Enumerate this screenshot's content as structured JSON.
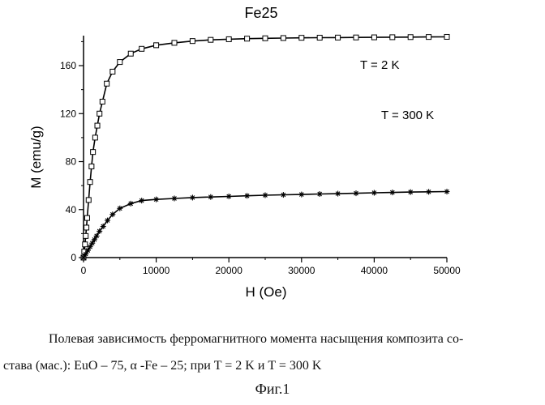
{
  "chart_data": {
    "type": "line",
    "title": "Fe25",
    "xlabel": "H (Oe)",
    "ylabel": "M (emu/g)",
    "xlim": [
      0,
      50000
    ],
    "ylim": [
      0,
      185
    ],
    "xticks": [
      0,
      10000,
      20000,
      30000,
      40000,
      50000
    ],
    "yticks": [
      0,
      40,
      80,
      120,
      160
    ],
    "grid": false,
    "legend": "none",
    "series": [
      {
        "name": "T = 2 K",
        "marker": "open-square",
        "x": [
          0,
          100,
          200,
          300,
          400,
          500,
          700,
          900,
          1100,
          1300,
          1600,
          1900,
          2200,
          2600,
          3200,
          4000,
          5000,
          6500,
          8000,
          10000,
          12500,
          15000,
          17500,
          20000,
          22500,
          25000,
          27500,
          30000,
          32500,
          35000,
          37500,
          40000,
          42500,
          45000,
          47500,
          50000
        ],
        "values": [
          0,
          5,
          11,
          18,
          25,
          33,
          48,
          63,
          76,
          88,
          100,
          110,
          120,
          130,
          145,
          155,
          163,
          170,
          174,
          177,
          179,
          180.5,
          181.5,
          182,
          182.5,
          182.8,
          183,
          183.2,
          183.3,
          183.4,
          183.5,
          183.6,
          183.7,
          183.8,
          183.9,
          184
        ]
      },
      {
        "name": "T = 300 K",
        "marker": "asterisk",
        "x": [
          0,
          300,
          600,
          900,
          1200,
          1500,
          1800,
          2200,
          2700,
          3300,
          4000,
          5000,
          6500,
          8000,
          10000,
          12500,
          15000,
          17500,
          20000,
          22500,
          25000,
          27500,
          30000,
          32500,
          35000,
          37500,
          40000,
          42500,
          45000,
          47500,
          50000
        ],
        "values": [
          0,
          3,
          6,
          9,
          12,
          15,
          18,
          22,
          26,
          31,
          36,
          41,
          45,
          47.5,
          48.5,
          49.3,
          50,
          50.5,
          51,
          51.5,
          52,
          52.3,
          52.6,
          53,
          53.3,
          53.6,
          54,
          54.3,
          54.6,
          54.8,
          55
        ]
      }
    ],
    "annotations": [
      "T = 2 K",
      "T = 300 K"
    ]
  },
  "caption": {
    "line1": "Полевая зависимость ферромагнитного момента насыщения композита со-",
    "line2": "става (мас.): EuO – 75, α -Fe – 25; при T = 2 K и T = 300 K",
    "figure_label": "Фиг.1"
  }
}
